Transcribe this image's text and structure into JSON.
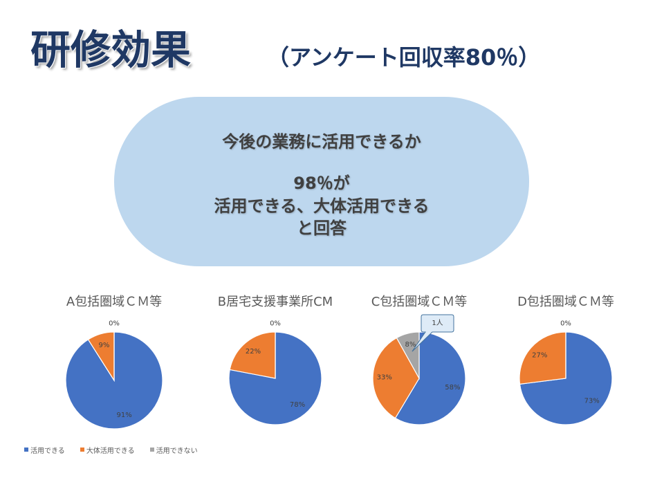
{
  "slide": {
    "title": "研修効果",
    "subtitle": "（アンケート回収率80％）",
    "summary": {
      "question": "今後の業務に活用できるか",
      "result": "98％が",
      "answer": "活用できる、大体活用できる",
      "closing": "と回答"
    }
  },
  "theme": {
    "title_color": "#1F3864",
    "summary_fill": "#BDD7EE",
    "summary_text_color": "#404040"
  },
  "chart_data": [
    {
      "type": "pie",
      "title": "A包括圏域ＣＭ等",
      "categories": [
        "活用できる",
        "大体活用できる",
        "活用できない"
      ],
      "values": [
        91,
        9,
        0
      ],
      "data_labels": [
        "91%",
        "9%",
        "0%"
      ],
      "colors": [
        "#4472C4",
        "#ED7D31",
        "#A5A5A5"
      ],
      "legend": "bottom-left"
    },
    {
      "type": "pie",
      "title": "B居宅支援事業所CM",
      "values": [
        78,
        22,
        0
      ],
      "data_labels": [
        "78%",
        "22%",
        "0%"
      ],
      "colors": [
        "#4472C4",
        "#ED7D31",
        "#A5A5A5"
      ]
    },
    {
      "type": "pie",
      "title": "C包括圏域ＣＭ等",
      "values": [
        58,
        33,
        8
      ],
      "data_labels": [
        "58%",
        "33%",
        "8%"
      ],
      "colors": [
        "#4472C4",
        "#ED7D31",
        "#A5A5A5"
      ],
      "callout": {
        "text": "1人",
        "slice": 2
      }
    },
    {
      "type": "pie",
      "title": "D包括圏域ＣＭ等",
      "values": [
        73,
        27,
        0
      ],
      "data_labels": [
        "73%",
        "27%",
        "0%"
      ],
      "colors": [
        "#4472C4",
        "#ED7D31",
        "#A5A5A5"
      ]
    }
  ]
}
